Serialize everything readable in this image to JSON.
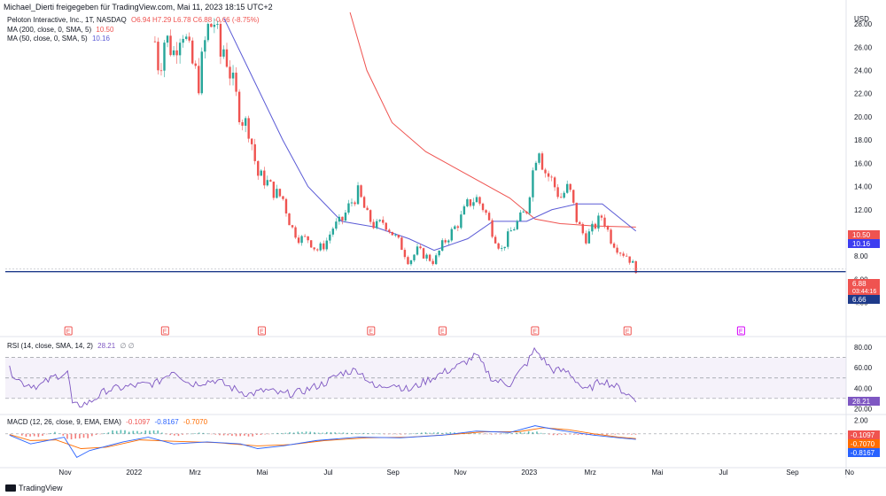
{
  "header": {
    "text": "Michael_Dierti freigegeben für TradingView.com, Mai 11, 2023 18:15 UTC+2"
  },
  "legend": {
    "symbol": "Peloton Interactive, Inc., 1T, NASDAQ",
    "ohlc": "O6.94 H7.29 L6.78 C6.88 -0.66 (-8.75%)",
    "ma200_label": "MA (200, close, 0, SMA, 5)",
    "ma200_value": "10.50",
    "ma50_label": "MA (50, close, 0, SMA, 5)",
    "ma50_value": "10.16",
    "rsi_label": "RSI (14, close, SMA, 14, 2)",
    "rsi_value": "28.21",
    "rsi_extra": "∅ ∅",
    "macd_label": "MACD (12, 26, close, 9, EMA, EMA)",
    "macd_hist": "-0.1097",
    "macd_line": "-0.8167",
    "macd_signal": "-0.7070"
  },
  "axis": {
    "currency": "USD"
  },
  "price_tags": {
    "ma200": "10.50",
    "ma50": "10.16",
    "last": "6.88",
    "countdown": "03:44:16",
    "support": "6.66"
  },
  "rsi_tags": {
    "rsi": "28.21"
  },
  "macd_tags": {
    "hist": "-0.1097",
    "signal": "-0.7070",
    "macd": "-0.8167"
  },
  "event_markers": {
    "label": "E"
  },
  "branding": {
    "logo_text": "TradingView"
  },
  "colors": {
    "up": "#26a69a",
    "down": "#ef5350",
    "ma200": "#ef5350",
    "ma50": "#5b5bd6",
    "rsi": "#7e57c2",
    "support": "#1e3a8a",
    "macd": "#2962ff",
    "signal": "#ff6d00"
  },
  "chart_data": {
    "type": "candlestick",
    "symbol": "PTON",
    "x_ticks": [
      "Nov",
      "2022",
      "Mrz",
      "Mai",
      "Jul",
      "Sep",
      "Nov",
      "2023",
      "Mrz",
      "Mai",
      "Jul",
      "Sep",
      "No"
    ],
    "price_ticks": [
      28,
      26,
      24,
      22,
      20,
      18,
      16,
      14,
      12,
      10,
      8,
      6,
      4
    ],
    "price_ylim": [
      2.9,
      29
    ],
    "price_path": [
      [
        0.178,
        26.5
      ],
      [
        0.183,
        24
      ],
      [
        0.19,
        27
      ],
      [
        0.2,
        25.5
      ],
      [
        0.21,
        28
      ],
      [
        0.22,
        25
      ],
      [
        0.23,
        23
      ],
      [
        0.24,
        27.5
      ],
      [
        0.25,
        28.3
      ],
      [
        0.255,
        25
      ],
      [
        0.26,
        26
      ],
      [
        0.27,
        23
      ],
      [
        0.28,
        20
      ],
      [
        0.29,
        19
      ],
      [
        0.3,
        15
      ],
      [
        0.31,
        14.5
      ],
      [
        0.32,
        13.5
      ],
      [
        0.33,
        13
      ],
      [
        0.34,
        10.5
      ],
      [
        0.35,
        9.5
      ],
      [
        0.36,
        9.5
      ],
      [
        0.37,
        8.5
      ],
      [
        0.38,
        9
      ],
      [
        0.39,
        10.5
      ],
      [
        0.4,
        11
      ],
      [
        0.41,
        12.5
      ],
      [
        0.42,
        13.5
      ],
      [
        0.43,
        11.5
      ],
      [
        0.44,
        10.5
      ],
      [
        0.45,
        11
      ],
      [
        0.46,
        10
      ],
      [
        0.47,
        9
      ],
      [
        0.48,
        7.5
      ],
      [
        0.49,
        8.5
      ],
      [
        0.5,
        8
      ],
      [
        0.51,
        7.5
      ],
      [
        0.52,
        9
      ],
      [
        0.53,
        10
      ],
      [
        0.54,
        11
      ],
      [
        0.55,
        12.5
      ],
      [
        0.56,
        13
      ],
      [
        0.57,
        12
      ],
      [
        0.58,
        10
      ],
      [
        0.59,
        8.5
      ],
      [
        0.6,
        10
      ],
      [
        0.61,
        11
      ],
      [
        0.62,
        12
      ],
      [
        0.63,
        16.5
      ],
      [
        0.635,
        17.5
      ],
      [
        0.64,
        15.5
      ],
      [
        0.65,
        14.5
      ],
      [
        0.66,
        13
      ],
      [
        0.67,
        14
      ],
      [
        0.68,
        11
      ],
      [
        0.69,
        9.5
      ],
      [
        0.7,
        10.5
      ],
      [
        0.71,
        11.5
      ],
      [
        0.72,
        9.5
      ],
      [
        0.73,
        8.5
      ],
      [
        0.74,
        8
      ],
      [
        0.75,
        6.88
      ]
    ],
    "ma200_path": [
      [
        0.41,
        29
      ],
      [
        0.43,
        24
      ],
      [
        0.46,
        19.5
      ],
      [
        0.5,
        17
      ],
      [
        0.55,
        15
      ],
      [
        0.6,
        13
      ],
      [
        0.63,
        11.2
      ],
      [
        0.66,
        10.8
      ],
      [
        0.7,
        10.6
      ],
      [
        0.75,
        10.5
      ]
    ],
    "ma50_path": [
      [
        0.26,
        28.5
      ],
      [
        0.29,
        24
      ],
      [
        0.33,
        18
      ],
      [
        0.36,
        14
      ],
      [
        0.4,
        11
      ],
      [
        0.44,
        10.5
      ],
      [
        0.48,
        9.5
      ],
      [
        0.51,
        8.5
      ],
      [
        0.55,
        9.5
      ],
      [
        0.58,
        11
      ],
      [
        0.62,
        11
      ],
      [
        0.65,
        12
      ],
      [
        0.68,
        12.5
      ],
      [
        0.71,
        12.5
      ],
      [
        0.75,
        10.16
      ]
    ],
    "support_level": 6.66,
    "earnings_events_x": [
      0.075,
      0.19,
      0.305,
      0.435,
      0.52,
      0.63,
      0.74
    ],
    "upcoming_event_x": 0.875,
    "rsi": {
      "ticks": [
        80,
        60,
        40,
        20
      ],
      "ylim": [
        16,
        87
      ],
      "upper": 70,
      "middle": 50,
      "lower": 30,
      "values": [
        [
          0.005,
          58
        ],
        [
          0.02,
          45
        ],
        [
          0.04,
          42
        ],
        [
          0.06,
          52
        ],
        [
          0.075,
          55
        ],
        [
          0.08,
          22
        ],
        [
          0.1,
          26
        ],
        [
          0.12,
          38
        ],
        [
          0.15,
          42
        ],
        [
          0.18,
          45
        ],
        [
          0.2,
          58
        ],
        [
          0.22,
          44
        ],
        [
          0.25,
          48
        ],
        [
          0.27,
          40
        ],
        [
          0.29,
          34
        ],
        [
          0.31,
          38
        ],
        [
          0.33,
          34
        ],
        [
          0.35,
          36
        ],
        [
          0.38,
          45
        ],
        [
          0.4,
          55
        ],
        [
          0.42,
          58
        ],
        [
          0.44,
          40
        ],
        [
          0.46,
          45
        ],
        [
          0.48,
          38
        ],
        [
          0.5,
          47
        ],
        [
          0.52,
          55
        ],
        [
          0.54,
          62
        ],
        [
          0.56,
          72
        ],
        [
          0.58,
          48
        ],
        [
          0.6,
          44
        ],
        [
          0.62,
          64
        ],
        [
          0.63,
          78
        ],
        [
          0.65,
          58
        ],
        [
          0.67,
          56
        ],
        [
          0.69,
          37
        ],
        [
          0.71,
          48
        ],
        [
          0.73,
          40
        ],
        [
          0.75,
          28.21
        ]
      ]
    },
    "macd": {
      "ticks": [
        2.0
      ],
      "ylim": [
        -4.5,
        2.6
      ],
      "zero": 0,
      "macd": [
        [
          0.005,
          -0.2
        ],
        [
          0.03,
          -1.5
        ],
        [
          0.05,
          -1.0
        ],
        [
          0.07,
          -0.5
        ],
        [
          0.085,
          -3.5
        ],
        [
          0.1,
          -2.5
        ],
        [
          0.14,
          -1.2
        ],
        [
          0.17,
          -0.5
        ],
        [
          0.2,
          -1.5
        ],
        [
          0.24,
          -1.2
        ],
        [
          0.28,
          -1.5
        ],
        [
          0.3,
          -2.2
        ],
        [
          0.33,
          -1.8
        ],
        [
          0.37,
          -1.0
        ],
        [
          0.42,
          -0.5
        ],
        [
          0.47,
          -0.6
        ],
        [
          0.52,
          -0.2
        ],
        [
          0.56,
          0.4
        ],
        [
          0.6,
          0.2
        ],
        [
          0.63,
          1.2
        ],
        [
          0.66,
          0.5
        ],
        [
          0.7,
          -0.2
        ],
        [
          0.73,
          -0.6
        ],
        [
          0.75,
          -0.82
        ]
      ],
      "signal": [
        [
          0.005,
          -0.1
        ],
        [
          0.03,
          -1.0
        ],
        [
          0.06,
          -0.9
        ],
        [
          0.09,
          -2.2
        ],
        [
          0.12,
          -2.0
        ],
        [
          0.16,
          -0.9
        ],
        [
          0.2,
          -1.1
        ],
        [
          0.25,
          -1.3
        ],
        [
          0.3,
          -1.8
        ],
        [
          0.34,
          -1.6
        ],
        [
          0.38,
          -1.0
        ],
        [
          0.43,
          -0.6
        ],
        [
          0.48,
          -0.5
        ],
        [
          0.53,
          -0.1
        ],
        [
          0.57,
          0.3
        ],
        [
          0.61,
          0.3
        ],
        [
          0.64,
          0.9
        ],
        [
          0.67,
          0.6
        ],
        [
          0.7,
          0.0
        ],
        [
          0.73,
          -0.5
        ],
        [
          0.75,
          -0.71
        ]
      ],
      "hist": [
        [
          0.02,
          -0.4
        ],
        [
          0.04,
          -0.5
        ],
        [
          0.06,
          0.4
        ],
        [
          0.08,
          -1.3
        ],
        [
          0.1,
          -0.5
        ],
        [
          0.13,
          0.5
        ],
        [
          0.16,
          0.4
        ],
        [
          0.18,
          0.5
        ],
        [
          0.2,
          -0.4
        ],
        [
          0.23,
          0.2
        ],
        [
          0.26,
          -0.3
        ],
        [
          0.29,
          -0.4
        ],
        [
          0.32,
          0.1
        ],
        [
          0.35,
          0.3
        ],
        [
          0.39,
          0.2
        ],
        [
          0.43,
          0.1
        ],
        [
          0.47,
          -0.1
        ],
        [
          0.5,
          0.2
        ],
        [
          0.54,
          0.2
        ],
        [
          0.58,
          -0.1
        ],
        [
          0.61,
          0.2
        ],
        [
          0.63,
          0.4
        ],
        [
          0.65,
          -0.2
        ],
        [
          0.67,
          -0.1
        ],
        [
          0.7,
          -0.2
        ],
        [
          0.72,
          -0.1
        ],
        [
          0.75,
          -0.11
        ]
      ]
    }
  }
}
